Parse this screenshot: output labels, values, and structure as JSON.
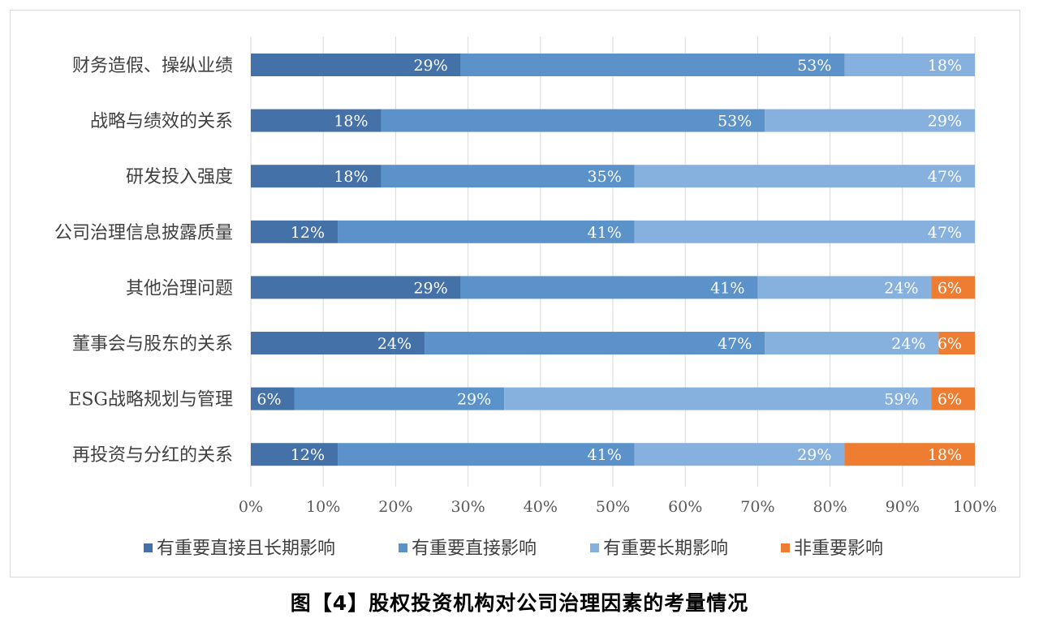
{
  "chart_data": {
    "type": "bar",
    "orientation": "horizontal",
    "stacked": "percent",
    "title": "",
    "xlabel": "",
    "ylabel": "",
    "xlim": [
      0,
      100
    ],
    "x_ticks": [
      "0%",
      "10%",
      "20%",
      "30%",
      "40%",
      "50%",
      "60%",
      "70%",
      "80%",
      "90%",
      "100%"
    ],
    "grid": "vertical",
    "legend_position": "bottom",
    "categories": [
      "财务造假、操纵业绩",
      "战略与绩效的关系",
      "研发投入强度",
      "公司治理信息披露质量",
      "其他治理问题",
      "董事会与股东的关系",
      "ESG战略规划与管理",
      "再投资与分红的关系"
    ],
    "series": [
      {
        "name": "有重要直接且长期影响",
        "color": "#4472a8",
        "values": [
          29,
          18,
          18,
          12,
          29,
          24,
          6,
          12
        ],
        "labels": [
          "29%",
          "18%",
          "18%",
          "12%",
          "29%",
          "24%",
          "6%",
          "12%"
        ]
      },
      {
        "name": "有重要直接影响",
        "color": "#5b92c9",
        "values": [
          53,
          53,
          35,
          41,
          41,
          47,
          29,
          41
        ],
        "labels": [
          "53%",
          "53%",
          "35%",
          "41%",
          "41%",
          "47%",
          "29%",
          "41%"
        ]
      },
      {
        "name": "有重要长期影响",
        "color": "#86b1de",
        "values": [
          18,
          29,
          47,
          47,
          24,
          24,
          59,
          29
        ],
        "labels": [
          "18%",
          "29%",
          "47%",
          "47%",
          "24%",
          "24%",
          "59%",
          "29%"
        ]
      },
      {
        "name": "非重要影响",
        "color": "#ee7d31",
        "values": [
          0,
          0,
          0,
          0,
          6,
          6,
          6,
          18
        ],
        "labels": [
          "",
          "",
          "",
          "",
          "6%",
          "6%",
          "6%",
          "18%"
        ]
      }
    ]
  },
  "caption": "图【4】股权投资机构对公司治理因素的考量情况"
}
